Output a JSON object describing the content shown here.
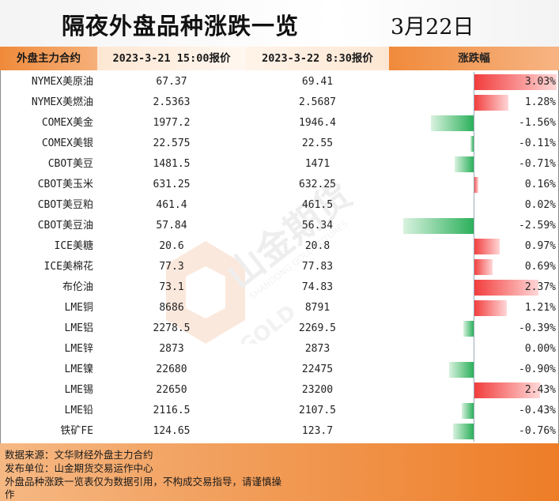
{
  "header": {
    "title": "隔夜外盘品种涨跌一览",
    "date": "3月22日",
    "col_name": "外盘主力合约",
    "col_prev": "2023-3-21 15:00报价",
    "col_curr": "2023-3-22 8:30报价",
    "col_change": "涨跌幅"
  },
  "chart_data": {
    "type": "bar",
    "title": "隔夜外盘品种涨跌一览",
    "categories": [
      "NYMEX美原油",
      "NYMEX美燃油",
      "COMEX美金",
      "COMEX美银",
      "CBOT美豆",
      "CBOT美玉米",
      "CBOT美豆粕",
      "CBOT美豆油",
      "ICE美糖",
      "ICE美棉花",
      "布伦油",
      "LME铜",
      "LME铝",
      "LME锌",
      "LME镍",
      "LME锡",
      "LME铅",
      "铁矿FE"
    ],
    "prev_prices": [
      "67.37",
      "2.5363",
      "1977.2",
      "22.575",
      "1481.5",
      "631.25",
      "461.4",
      "57.84",
      "20.6",
      "77.3",
      "73.1",
      "8686",
      "2278.5",
      "2873",
      "22680",
      "22650",
      "2116.5",
      "124.65"
    ],
    "curr_prices": [
      "69.41",
      "2.5687",
      "1946.4",
      "22.55",
      "1471",
      "632.25",
      "461.5",
      "56.34",
      "20.8",
      "77.83",
      "74.83",
      "8791",
      "2269.5",
      "2873",
      "22475",
      "23200",
      "2107.5",
      "123.7"
    ],
    "values": [
      3.03,
      1.28,
      -1.56,
      -0.11,
      -0.71,
      0.16,
      0.02,
      -2.59,
      0.97,
      0.69,
      2.37,
      1.21,
      -0.39,
      0.0,
      -0.9,
      2.43,
      -0.43,
      -0.76
    ],
    "value_labels": [
      "3.03%",
      "1.28%",
      "-1.56%",
      "-0.11%",
      "-0.71%",
      "0.16%",
      "0.02%",
      "-2.59%",
      "0.97%",
      "0.69%",
      "2.37%",
      "1.21%",
      "-0.39%",
      "0.00%",
      "-0.90%",
      "2.43%",
      "-0.43%",
      "-0.76%"
    ],
    "colors": {
      "positive": "#f23b3b",
      "negative": "#2bb05a"
    }
  },
  "footer": {
    "line1": "数据来源：文华财经外盘主力合约",
    "line2": "发布单位：山金期货交易运作中心",
    "line3": "外盘品种涨跌一览表仅为数据引用，不构成交易指导，请谨慎操",
    "line4": "作"
  },
  "watermark": {
    "brand": "山金期货",
    "brand_en": "SHANDONG GOLD FUTURES",
    "logo_text": "SD-GOLD"
  }
}
